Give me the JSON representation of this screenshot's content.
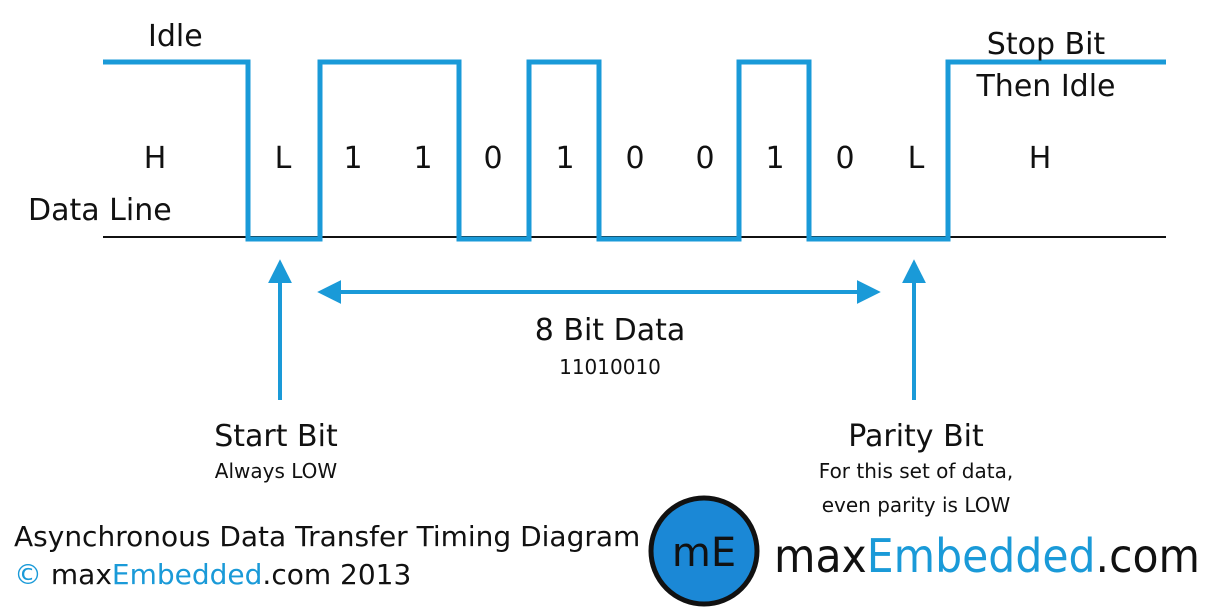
{
  "labels": {
    "idle": "Idle",
    "stop_bit_line1": "Stop Bit",
    "stop_bit_line2": "Then Idle",
    "data_line": "Data Line",
    "data_span_title": "8 Bit Data",
    "data_span_value": "11010010",
    "start_bit_title": "Start Bit",
    "start_bit_note": "Always LOW",
    "parity_bit_title": "Parity Bit",
    "parity_bit_note_line1": "For this set of data,",
    "parity_bit_note_line2": "even parity is LOW"
  },
  "bit_levels": [
    "H",
    "L",
    "1",
    "1",
    "0",
    "1",
    "0",
    "0",
    "1",
    "0",
    "L",
    "H"
  ],
  "footer": {
    "caption": "Asynchronous Data Transfer Timing Diagram",
    "copyright_symbol": "©",
    "copyright_pre": " max",
    "copyright_brand": "Embedded",
    "copyright_post": ".com 2013"
  },
  "logo": {
    "badge_text": "mE",
    "name_pre": "max",
    "name_brand": "Embedded",
    "name_post": ".com"
  },
  "colors": {
    "signal": "#1a9ad8",
    "baseline": "#111111",
    "brand": "#1a9ad8",
    "badge_fill": "#1b88d6",
    "badge_ring": "#111111"
  }
}
